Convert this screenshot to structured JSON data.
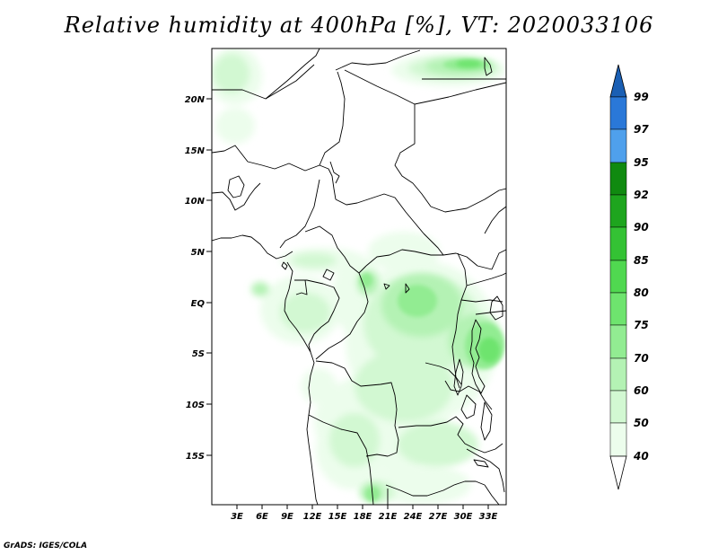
{
  "title": "Relative humidity at 400hPa [%], VT: 2020033106",
  "credit": "GrADS: IGES/COLA",
  "map": {
    "lat_labels": [
      "20N",
      "15N",
      "10N",
      "5N",
      "EQ",
      "5S",
      "10S",
      "15S"
    ],
    "lon_labels": [
      "3E",
      "6E",
      "9E",
      "12E",
      "15E",
      "18E",
      "21E",
      "24E",
      "27E",
      "30E",
      "33E"
    ]
  },
  "colorbar": {
    "labels": [
      "99",
      "97",
      "95",
      "92",
      "90",
      "85",
      "80",
      "75",
      "70",
      "60",
      "50",
      "40"
    ],
    "colors": {
      "above_99": "#1a5fb4",
      "97_99": "#2a78d8",
      "95_97": "#4fa0ec",
      "92_95": "#108a10",
      "90_92": "#1ea51e",
      "85_90": "#34c234",
      "80_85": "#50d850",
      "75_80": "#6ee46e",
      "70_75": "#92ec92",
      "60_70": "#b4f2b4",
      "50_60": "#d2f8d2",
      "40_50": "#ecfdec",
      "below_40": "#ffffff"
    }
  }
}
